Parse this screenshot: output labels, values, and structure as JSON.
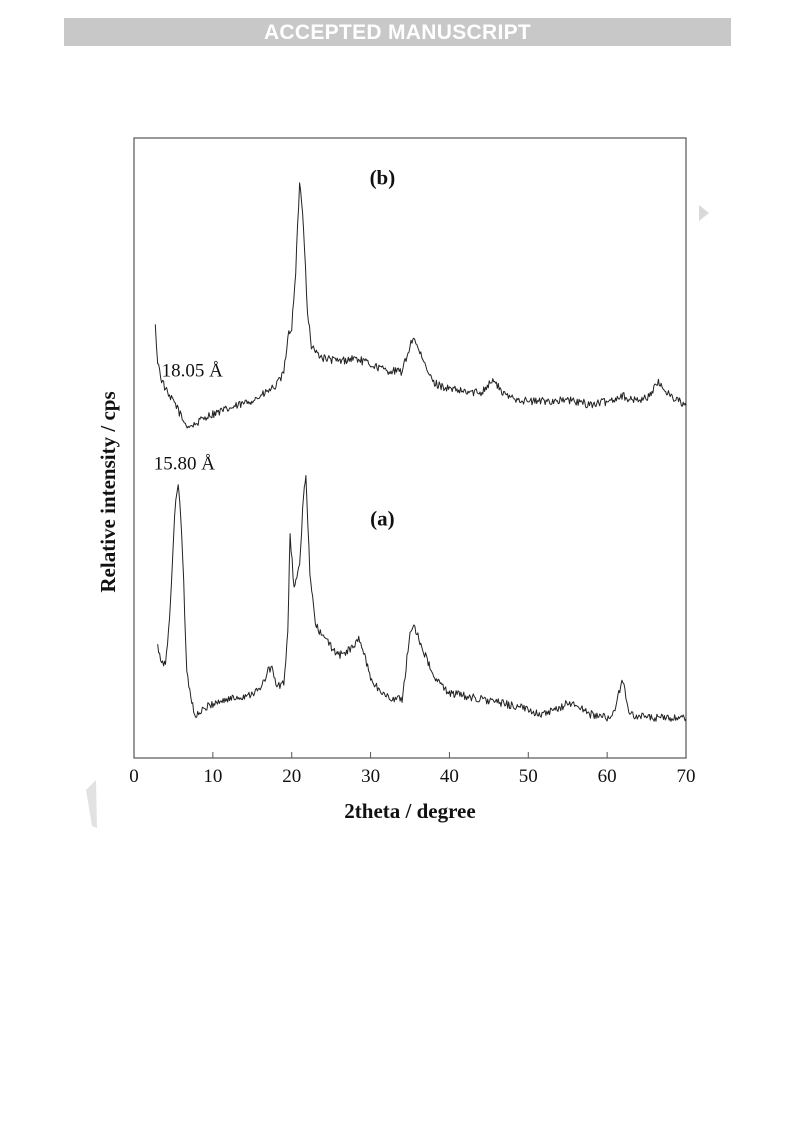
{
  "header": {
    "banner": "ACCEPTED MANUSCRIPT"
  },
  "chart_data": {
    "type": "line",
    "xlabel": "2theta / degree",
    "ylabel": "Relative intensity / cps",
    "xlim": [
      0,
      70
    ],
    "ylim": [
      0,
      100
    ],
    "xticks": [
      0,
      10,
      20,
      30,
      40,
      50,
      60,
      70
    ],
    "grid": false,
    "legend": "none",
    "annotations": [
      {
        "text": "(b)",
        "x": 31.5,
        "y": 92.5
      },
      {
        "text": "(a)",
        "x": 31.5,
        "y": 37.5
      },
      {
        "text": "18.05 Å",
        "x": 3.5,
        "y": 61.5
      },
      {
        "text": "15.80 Å",
        "x": 2.5,
        "y": 46.5
      }
    ],
    "series": [
      {
        "label": "(b)",
        "x": [
          2.7,
          3.0,
          3.5,
          4.0,
          4.5,
          5.0,
          5.5,
          6.0,
          6.5,
          7.0,
          7.5,
          8.0,
          9.0,
          10.0,
          12.0,
          14.0,
          16.0,
          18.0,
          19.0,
          19.5,
          20.0,
          20.5,
          21.0,
          21.5,
          22.0,
          22.5,
          23.0,
          24.0,
          26.0,
          28.0,
          30.0,
          32.0,
          34.0,
          35.0,
          35.5,
          36.0,
          37.0,
          38.0,
          40.0,
          42.0,
          44.0,
          45.5,
          47.0,
          50.0,
          55.0,
          58.0,
          60.0,
          62.0,
          63.0,
          65.0,
          66.5,
          68.0,
          70.0
        ],
        "y": [
          69.5,
          64.0,
          61.0,
          59.5,
          58.0,
          57.7,
          56.5,
          55.0,
          53.9,
          53.5,
          53.7,
          54.0,
          55.0,
          55.5,
          56.3,
          57.2,
          58.3,
          60.0,
          62.0,
          68.0,
          69.5,
          78.0,
          93.0,
          86.0,
          72.0,
          66.5,
          65.5,
          64.5,
          64.0,
          64.5,
          63.5,
          62.5,
          62.3,
          66.5,
          68.0,
          66.0,
          63.0,
          60.5,
          59.5,
          59.0,
          59.0,
          61.0,
          58.5,
          57.5,
          57.7,
          57.0,
          57.5,
          58.5,
          57.7,
          58.0,
          60.5,
          58.5,
          56.8
        ]
      },
      {
        "label": "(a)",
        "x": [
          3.0,
          3.5,
          4.0,
          4.5,
          5.0,
          5.3,
          5.6,
          5.9,
          6.3,
          6.7,
          7.2,
          7.7,
          8.2,
          9.0,
          10.0,
          12.0,
          14.0,
          16.0,
          17.0,
          17.5,
          18.0,
          19.0,
          19.5,
          19.8,
          20.3,
          21.0,
          21.5,
          21.8,
          22.3,
          23.0,
          24.0,
          26.0,
          28.0,
          28.5,
          29.0,
          30.0,
          31.0,
          32.0,
          33.0,
          34.0,
          35.0,
          35.5,
          36.5,
          38.0,
          40.0,
          44.0,
          48.0,
          52.0,
          54.0,
          55.0,
          56.0,
          58.0,
          60.0,
          61.0,
          61.6,
          62.0,
          62.5,
          63.0,
          65.0,
          70.0
        ],
        "y": [
          18.0,
          15.0,
          15.5,
          22.0,
          35.0,
          42.0,
          44.5,
          40.0,
          28.0,
          14.0,
          10.0,
          7.0,
          7.0,
          8.0,
          8.8,
          9.5,
          10.0,
          11.0,
          14.0,
          14.8,
          11.5,
          12.0,
          20.0,
          36.0,
          27.5,
          31.0,
          42.5,
          45.0,
          30.0,
          21.5,
          19.5,
          16.5,
          18.0,
          19.5,
          17.5,
          13.0,
          11.0,
          10.0,
          9.5,
          9.5,
          20.0,
          21.5,
          18.0,
          13.0,
          10.5,
          9.5,
          8.5,
          7.0,
          8.0,
          9.0,
          8.5,
          7.0,
          6.5,
          7.5,
          11.0,
          12.5,
          9.0,
          7.0,
          6.5,
          6.3
        ]
      }
    ]
  }
}
